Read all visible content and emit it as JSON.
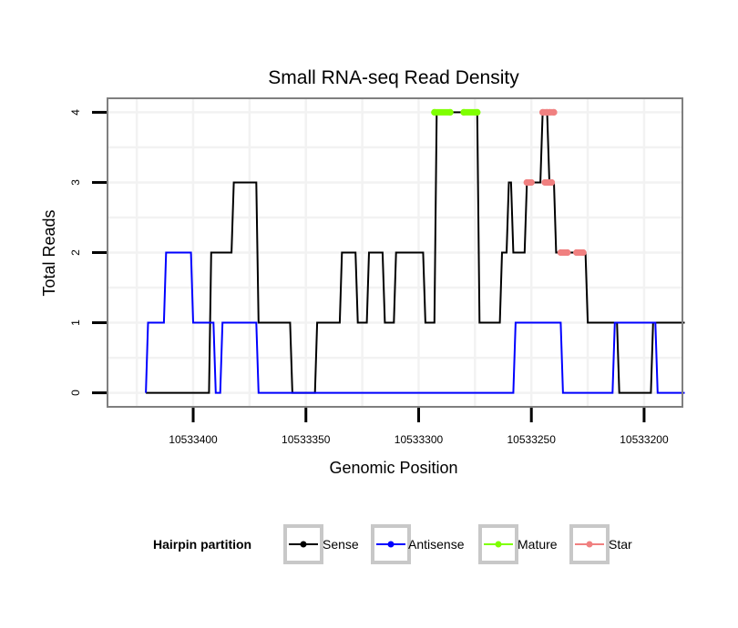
{
  "chart_data": {
    "type": "line",
    "title": "Small RNA-seq Read Density",
    "xlabel": "Genomic Position",
    "ylabel": "Total Reads",
    "x_reversed": true,
    "xlim": [
      10533438,
      10533183
    ],
    "ylim": [
      -0.2,
      4.2
    ],
    "x_ticks": [
      10533400,
      10533350,
      10533300,
      10533250,
      10533200
    ],
    "x_tick_labels": [
      "10533400",
      "10533350",
      "10533300",
      "10533250",
      "10533200"
    ],
    "y_ticks": [
      0,
      1,
      2,
      3,
      4
    ],
    "y_tick_labels": [
      "0",
      "1",
      "2",
      "3",
      "4"
    ],
    "grid": true,
    "legend": {
      "title": "Hairpin partition",
      "position": "bottom",
      "entries": [
        {
          "name": "Sense",
          "color": "#000000"
        },
        {
          "name": "Antisense",
          "color": "#0000ff"
        },
        {
          "name": "Mature",
          "color": "#7fff00"
        },
        {
          "name": "Star",
          "color": "#f08080"
        }
      ]
    },
    "series": [
      {
        "name": "Sense",
        "color": "#000000",
        "x": [
          10533421,
          10533393,
          10533392,
          10533387,
          10533386,
          10533383,
          10533382,
          10533372,
          10533371,
          10533362,
          10533361,
          10533357,
          10533356,
          10533346,
          10533345,
          10533335,
          10533334,
          10533328,
          10533327,
          10533323,
          10533322,
          10533316,
          10533315,
          10533311,
          10533310,
          10533298,
          10533297,
          10533293,
          10533292,
          10533286,
          10533285,
          10533281,
          10533280,
          10533274,
          10533273,
          10533264,
          10533263,
          10533261,
          10533260,
          10533259,
          10533258,
          10533253,
          10533252,
          10533246,
          10533245,
          10533243,
          10533242,
          10533240,
          10533239,
          10533237,
          10533236,
          10533226,
          10533225,
          10533212,
          10533211,
          10533197,
          10533196,
          10533182
        ],
        "y": [
          0,
          0,
          2,
          2,
          2,
          2,
          3,
          3,
          1,
          1,
          1,
          1,
          0,
          0,
          1,
          1,
          2,
          2,
          1,
          1,
          2,
          2,
          1,
          1,
          2,
          2,
          1,
          1,
          4,
          4,
          4,
          4,
          4,
          4,
          1,
          1,
          2,
          2,
          3,
          3,
          2,
          2,
          3,
          3,
          4,
          4,
          3,
          3,
          2,
          2,
          2,
          2,
          1,
          1,
          0,
          0,
          1,
          1
        ]
      },
      {
        "name": "Antisense",
        "color": "#0000ff",
        "x": [
          10533421,
          10533420,
          10533413,
          10533412,
          10533401,
          10533400,
          10533391,
          10533390,
          10533388,
          10533387,
          10533372,
          10533371,
          10533345,
          10533344,
          10533300,
          10533258,
          10533257,
          10533237,
          10533236,
          10533214,
          10533213,
          10533195,
          10533194,
          10533182
        ],
        "y": [
          0,
          1,
          1,
          2,
          2,
          1,
          1,
          0,
          0,
          1,
          1,
          0,
          0,
          0,
          0,
          0,
          1,
          1,
          0,
          0,
          1,
          1,
          0,
          0
        ]
      },
      {
        "name": "Mature",
        "color": "#7fff00",
        "x": [
          10533293,
          10533286,
          10533280,
          10533274
        ],
        "y": [
          4,
          4,
          4,
          4
        ]
      },
      {
        "name": "Star",
        "color": "#f08080",
        "x": [
          10533245,
          10533243,
          10533242,
          10533240,
          10533252,
          10533250,
          10533244,
          10533241,
          10533237,
          10533234,
          10533230,
          10533227
        ],
        "y": [
          4,
          4,
          4,
          4,
          3,
          3,
          3,
          3,
          2,
          2,
          2,
          2
        ]
      }
    ]
  }
}
